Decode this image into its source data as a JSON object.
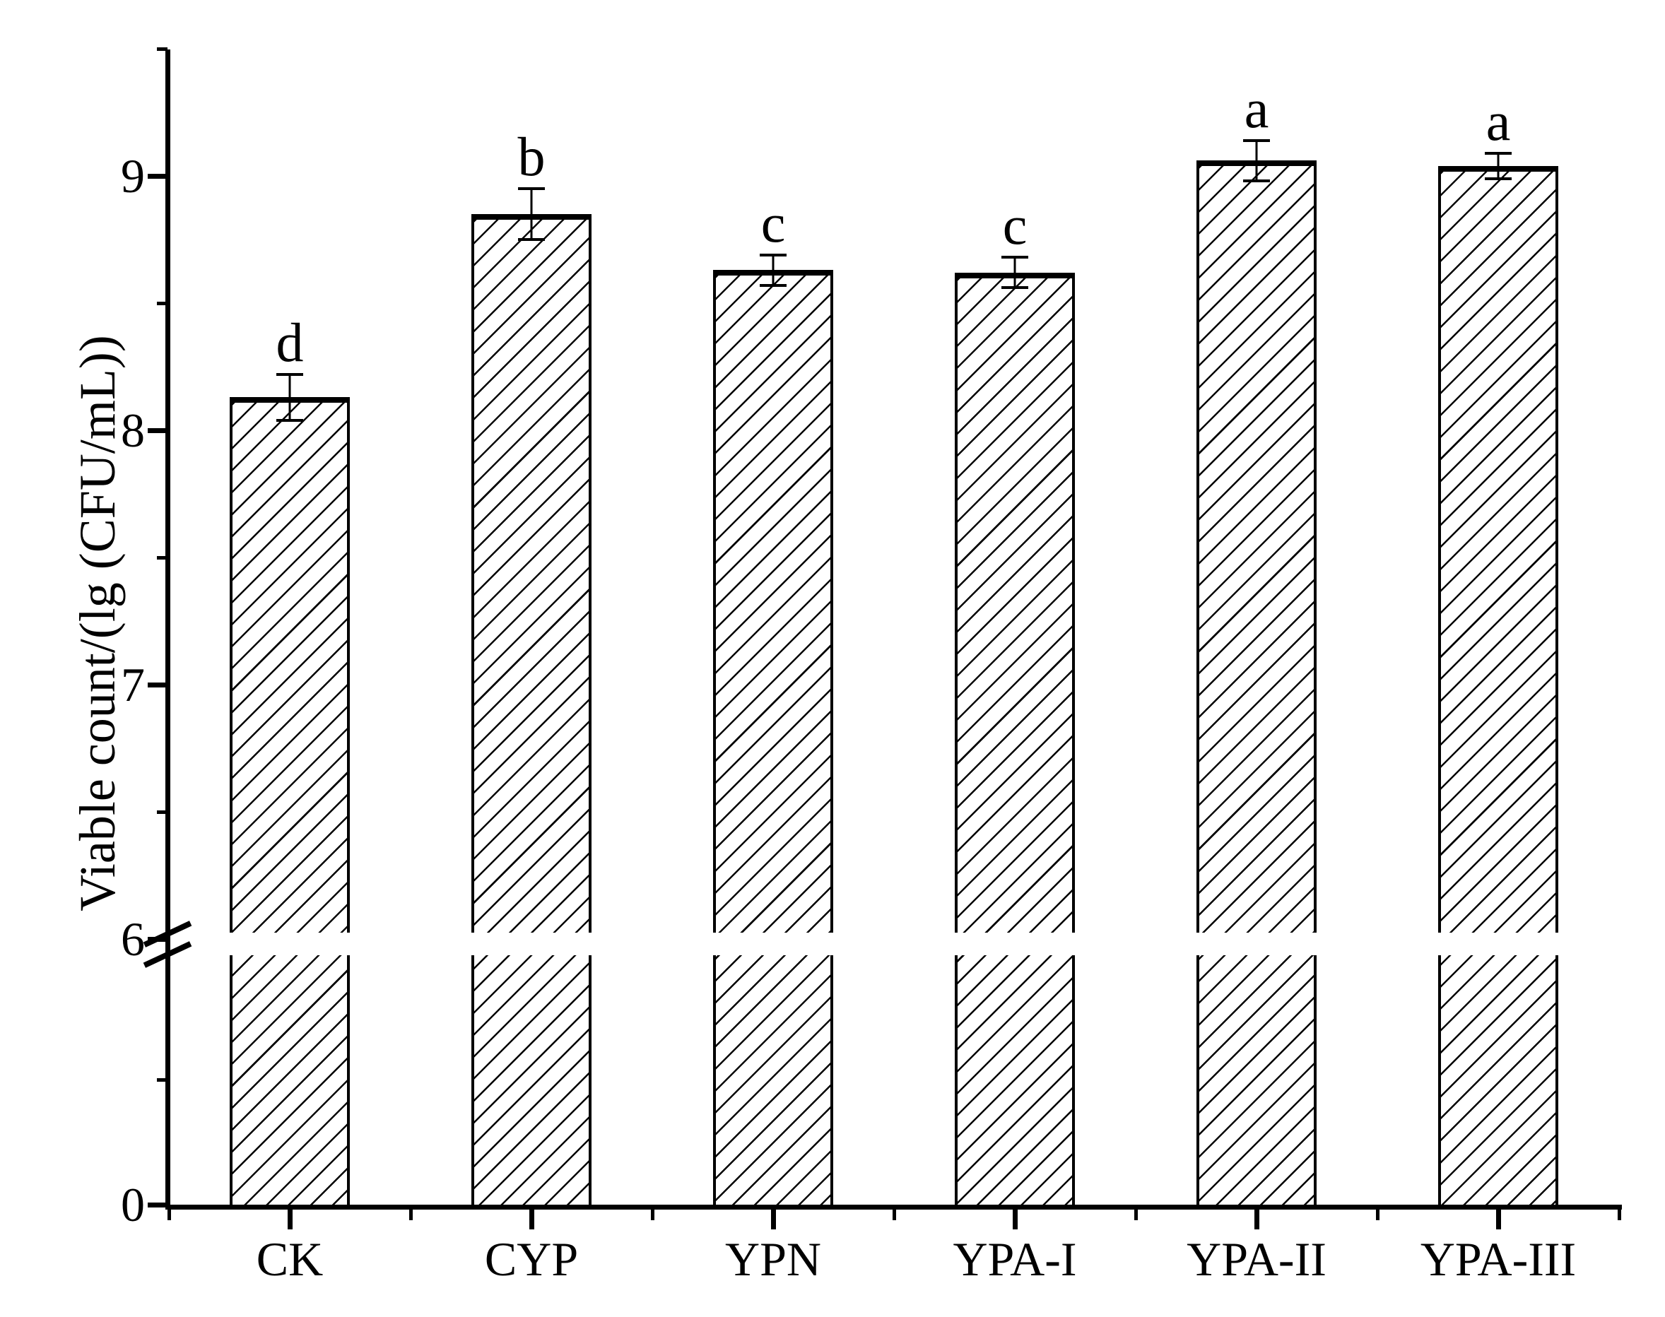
{
  "chart_data": {
    "type": "bar",
    "title": "",
    "xlabel": "",
    "ylabel": "Viable count/(lg (CFU/mL))",
    "categories": [
      "CK",
      "CYP",
      "YPN",
      "YPA-I",
      "YPA-II",
      "YPA-III"
    ],
    "series": [
      {
        "name": "Viable count",
        "values": [
          8.13,
          8.85,
          8.63,
          8.62,
          9.06,
          9.04
        ],
        "errors": [
          0.09,
          0.1,
          0.06,
          0.06,
          0.08,
          0.05
        ],
        "sig_letters": [
          "d",
          "b",
          "c",
          "c",
          "a",
          "a"
        ]
      }
    ],
    "y_axis": {
      "upper_segment": {
        "range": [
          6,
          9.5
        ],
        "major_ticks": [
          6,
          7,
          8,
          9
        ],
        "major_tick_labels": [
          "6",
          "7",
          "8",
          "9"
        ],
        "minor_ticks": [
          6.5,
          7.5,
          8.5,
          9.5
        ]
      },
      "lower_segment": {
        "range": [
          0,
          6
        ],
        "major_ticks": [
          0
        ],
        "major_tick_labels": [
          "0"
        ],
        "minor_ticks": [
          3
        ]
      },
      "axis_break": {
        "between": [
          0,
          6
        ],
        "style": "double-slash"
      }
    },
    "x_axis": {
      "grid": false
    },
    "legend": "none",
    "bar_style": {
      "fill": "diagonal-hatch",
      "hatch_direction": "/",
      "stroke_color": "#000000",
      "background": "#ffffff"
    }
  }
}
